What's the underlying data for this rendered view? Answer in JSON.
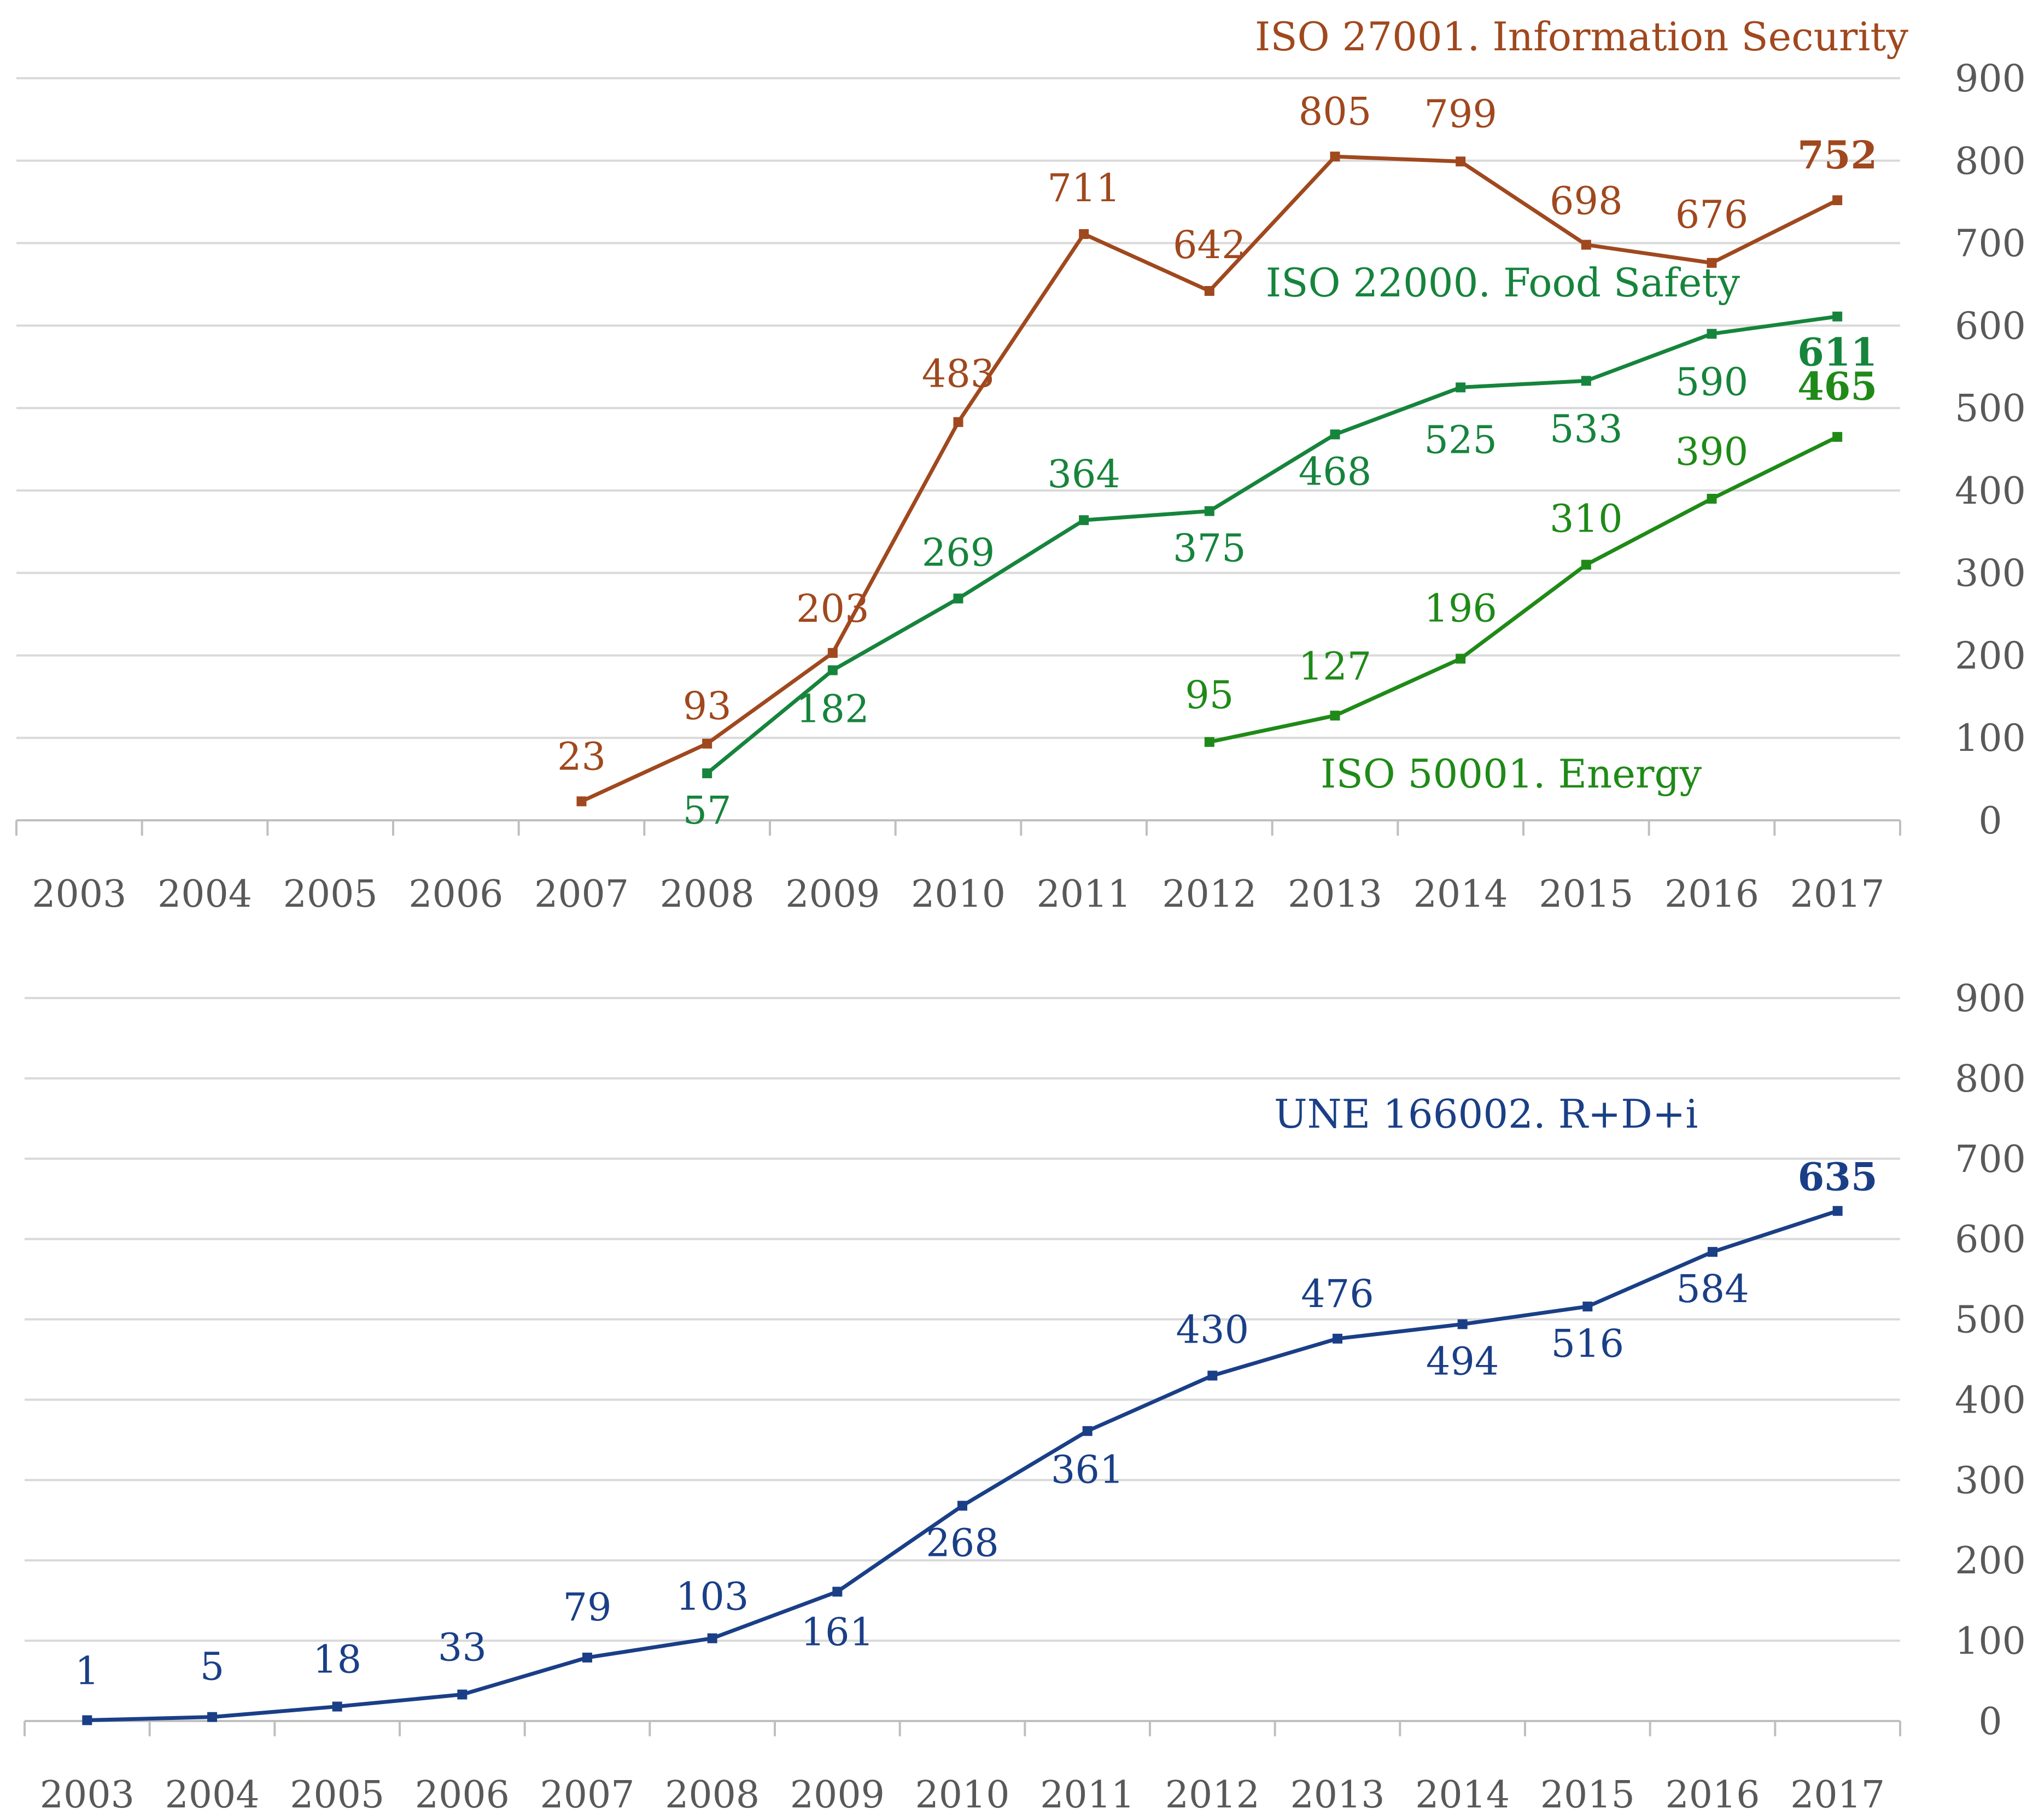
{
  "chart_data": [
    {
      "type": "line",
      "categories": [
        "2003",
        "2004",
        "2005",
        "2006",
        "2007",
        "2008",
        "2009",
        "2010",
        "2011",
        "2012",
        "2013",
        "2014",
        "2015",
        "2016",
        "2017"
      ],
      "ylim": [
        0,
        900
      ],
      "yticks": [
        0,
        100,
        200,
        300,
        400,
        500,
        600,
        700,
        800,
        900
      ],
      "grid": true,
      "y_axis_side": "right",
      "series": [
        {
          "name": "ISO 27001. Information Security",
          "color": "#a0481e",
          "values": [
            null,
            null,
            null,
            null,
            23,
            93,
            203,
            483,
            711,
            642,
            805,
            799,
            698,
            676,
            752
          ]
        },
        {
          "name": "ISO 22000. Food Safety",
          "color": "#16843c",
          "values": [
            null,
            null,
            null,
            null,
            null,
            57,
            182,
            269,
            364,
            375,
            468,
            525,
            533,
            590,
            611
          ]
        },
        {
          "name": "ISO 50001. Energy",
          "color": "#1f8a17",
          "values": [
            null,
            null,
            null,
            null,
            null,
            null,
            null,
            null,
            null,
            95,
            127,
            196,
            310,
            390,
            465
          ]
        }
      ]
    },
    {
      "type": "line",
      "categories": [
        "2003",
        "2004",
        "2005",
        "2006",
        "2007",
        "2008",
        "2009",
        "2010",
        "2011",
        "2012",
        "2013",
        "2014",
        "2015",
        "2016",
        "2017"
      ],
      "ylim": [
        0,
        900
      ],
      "yticks": [
        0,
        100,
        200,
        300,
        400,
        500,
        600,
        700,
        800,
        900
      ],
      "grid": true,
      "y_axis_side": "right",
      "series": [
        {
          "name": "UNE 166002. R+D+i",
          "color": "#1a3f87",
          "values": [
            1,
            5,
            18,
            33,
            79,
            103,
            161,
            268,
            361,
            430,
            476,
            494,
            516,
            584,
            635
          ]
        }
      ]
    }
  ]
}
